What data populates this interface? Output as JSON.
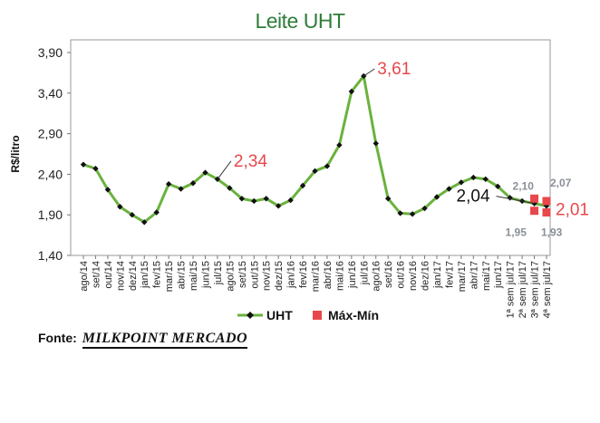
{
  "chart_data": {
    "type": "line",
    "title": "Leite UHT",
    "ylabel": "R$/litro",
    "xlabel": "",
    "ylim": [
      1.4,
      3.9
    ],
    "yticks": [
      "3,90",
      "3,40",
      "2,90",
      "2,40",
      "1,90",
      "1,40"
    ],
    "grid": false,
    "legend_position": "bottom",
    "categories": [
      "ago/14",
      "set/14",
      "out/14",
      "nov/14",
      "dez/14",
      "jan/15",
      "fev/15",
      "mar/15",
      "abr/15",
      "mai/15",
      "jun/15",
      "jul/15",
      "ago/15",
      "set/15",
      "out/15",
      "nov/15",
      "dez/15",
      "jan/16",
      "fev/16",
      "mar/16",
      "abr/16",
      "mai/16",
      "jun/16",
      "jul/16",
      "ago/16",
      "set/16",
      "out/16",
      "nov/16",
      "dez/16",
      "jan/17",
      "fev/17",
      "mar/17",
      "abr/17",
      "mai/17",
      "jun/17",
      "1ª sem jul/17",
      "2ª sem jul/17",
      "3ª sem jul/17",
      "4ª sem jul/17"
    ],
    "series": [
      {
        "name": "UHT",
        "color": "#6ab23e",
        "values": [
          2.52,
          2.47,
          2.21,
          2.0,
          1.9,
          1.81,
          1.93,
          2.28,
          2.22,
          2.29,
          2.42,
          2.34,
          2.23,
          2.1,
          2.07,
          2.1,
          2.01,
          2.08,
          2.26,
          2.44,
          2.5,
          2.76,
          3.42,
          3.61,
          2.78,
          2.1,
          1.92,
          1.91,
          1.98,
          2.12,
          2.22,
          2.3,
          2.36,
          2.34,
          2.25,
          2.11,
          2.07,
          2.04,
          2.01
        ]
      },
      {
        "name": "Máx-Mín",
        "color": "#e8474b",
        "points": [
          {
            "category": "3ª sem jul/17",
            "value": 2.1
          },
          {
            "category": "3ª sem jul/17",
            "value": 1.95
          },
          {
            "category": "4ª sem jul/17",
            "value": 2.07
          },
          {
            "category": "4ª sem jul/17",
            "value": 1.93
          }
        ]
      }
    ],
    "annotations": [
      {
        "text": "2,34",
        "category": "jul/15",
        "value": 2.34,
        "color": "#e8474b",
        "size": "large"
      },
      {
        "text": "3,61",
        "category": "jul/16",
        "value": 3.61,
        "color": "#e8474b",
        "size": "large"
      },
      {
        "text": "2,04",
        "category": "3ª sem jul/17",
        "value": 2.04,
        "color": "#111111",
        "size": "large"
      },
      {
        "text": "2,01",
        "category": "4ª sem jul/17",
        "value": 2.01,
        "color": "#e8474b",
        "size": "large"
      },
      {
        "text": "2,10",
        "category": "3ª sem jul/17",
        "value": 2.1,
        "color": "#8a8f98",
        "size": "small"
      },
      {
        "text": "1,95",
        "category": "3ª sem jul/17",
        "value": 1.95,
        "color": "#8a8f98",
        "size": "small"
      },
      {
        "text": "2,07",
        "category": "4ª sem jul/17",
        "value": 2.07,
        "color": "#8a8f98",
        "size": "small"
      },
      {
        "text": "1,93",
        "category": "4ª sem jul/17",
        "value": 1.93,
        "color": "#8a8f98",
        "size": "small"
      }
    ]
  },
  "source": {
    "label": "Fonte:",
    "brand": "MILKPOINT MERCADO"
  }
}
